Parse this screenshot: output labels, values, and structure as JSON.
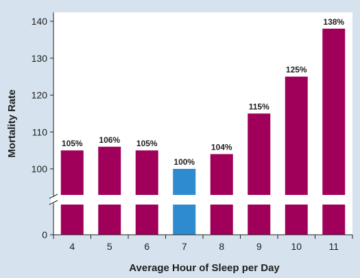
{
  "chart_data": {
    "type": "bar",
    "xlabel": "Average Hour of Sleep per Day",
    "ylabel": "Mortality Rate",
    "categories": [
      "4",
      "5",
      "6",
      "7",
      "8",
      "9",
      "10",
      "11"
    ],
    "values": [
      105,
      106,
      105,
      100,
      104,
      115,
      125,
      138
    ],
    "data_labels": [
      "105%",
      "106%",
      "105%",
      "100%",
      "104%",
      "115%",
      "125%",
      "138%"
    ],
    "highlight_category": "7",
    "yticks": [
      0,
      100,
      110,
      120,
      130,
      140
    ],
    "ylim_upper": [
      100,
      140
    ],
    "y_axis_break": true,
    "grid": false,
    "legend": "none",
    "colors": {
      "bar": "#a0005a",
      "highlight_bar": "#2e8bcd",
      "background": "#d6e3ef",
      "plot_background": "#ffffff",
      "axis": "#1e1e1e"
    }
  }
}
